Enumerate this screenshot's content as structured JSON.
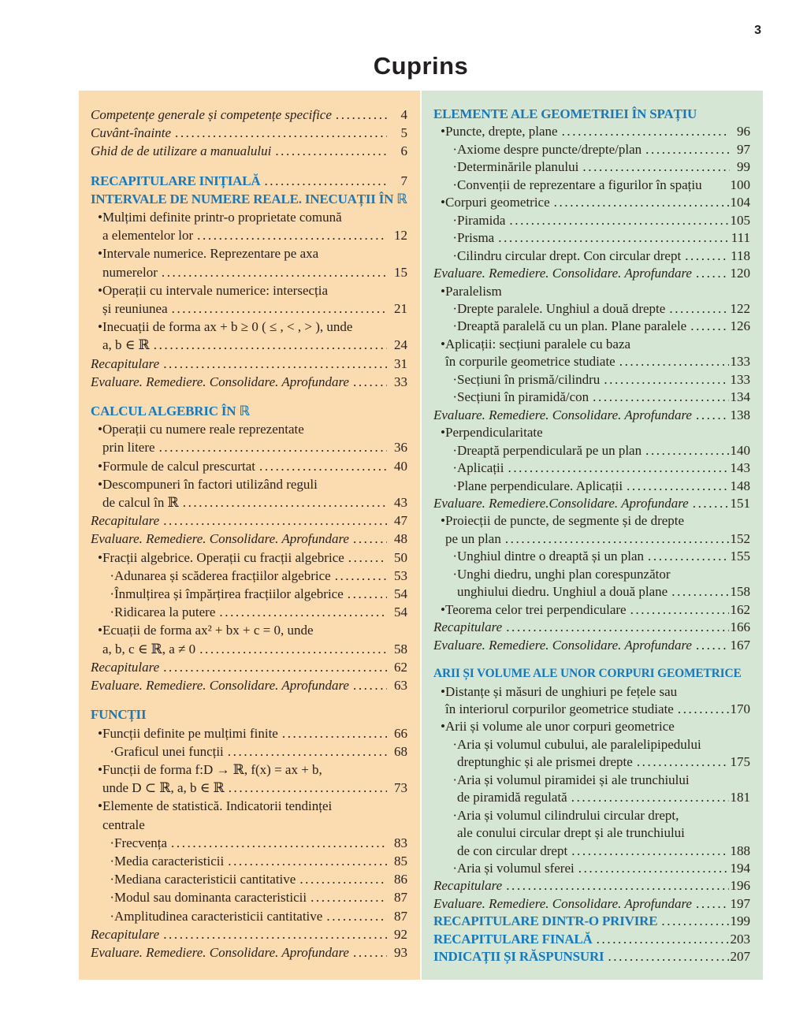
{
  "page_number": "3",
  "title": "Cuprins",
  "colors": {
    "left_column_bg": "#fbdbb0",
    "right_column_bg": "#d6e6d4",
    "heading_blue": "#1778ba",
    "body_text": "#29211d"
  },
  "columns": [
    {
      "name": "left",
      "entries": [
        {
          "style": "italic",
          "text": "Competențe generale și competențe specifice",
          "page": "4"
        },
        {
          "style": "italic",
          "text": "Cuvânt-înainte",
          "page": "5"
        },
        {
          "style": "italic",
          "text": "Ghid de de utilizare a manualului",
          "page": "6"
        },
        {
          "gap": true
        },
        {
          "style": "heading",
          "text": "RECAPITULARE INIȚIALĂ",
          "page": "7"
        },
        {
          "style": "heading",
          "text": "INTERVALE DE NUMERE REALE. INECUAȚII ÎN ℝ"
        },
        {
          "marker": "•",
          "text": "Mulțimi definite printr-o proprietate comună"
        },
        {
          "indent": 1,
          "text": "a elementelor lor",
          "page": "12"
        },
        {
          "marker": "•",
          "text": "Intervale numerice. Reprezentare pe axa"
        },
        {
          "indent": 1,
          "text": "numerelor",
          "page": "15"
        },
        {
          "marker": "•",
          "text": "Operații cu intervale numerice: intersecția"
        },
        {
          "indent": 1,
          "text": "și reuniunea",
          "page": "21"
        },
        {
          "marker": "•",
          "text": "Inecuații de forma ax + b ≥ 0 ( ≤ , < , > ), unde"
        },
        {
          "indent": 1,
          "text": "a, b ∈ ℝ",
          "page": "24"
        },
        {
          "style": "italic",
          "text": "Recapitulare",
          "page": "31"
        },
        {
          "style": "italic",
          "text": "Evaluare. Remediere. Consolidare. Aprofundare",
          "page": "33"
        },
        {
          "gap": true
        },
        {
          "style": "heading",
          "text": "CALCUL ALGEBRIC ÎN ℝ"
        },
        {
          "marker": "•",
          "text": "Operații cu numere reale reprezentate"
        },
        {
          "indent": 1,
          "text": "prin litere",
          "page": "36"
        },
        {
          "marker": "•",
          "text": "Formule de calcul prescurtat",
          "page": "40"
        },
        {
          "marker": "•",
          "text": "Descompuneri în factori utilizând reguli"
        },
        {
          "indent": 1,
          "text": "de calcul în ℝ",
          "page": "43"
        },
        {
          "style": "italic",
          "text": "Recapitulare",
          "page": "47"
        },
        {
          "style": "italic",
          "text": "Evaluare. Remediere. Consolidare. Aprofundare",
          "page": "48"
        },
        {
          "marker": "•",
          "text": "Fracții algebrice. Operații cu fracții algebrice",
          "page": "50"
        },
        {
          "indent": 1,
          "marker": "·",
          "text": "Adunarea și scăderea fracțiilor algebrice",
          "page": "53"
        },
        {
          "indent": 1,
          "marker": "·",
          "text": "Înmulțirea și împărțirea fracțiilor algebrice",
          "page": "54"
        },
        {
          "indent": 1,
          "marker": "·",
          "text": "Ridicarea la putere",
          "page": "54"
        },
        {
          "marker": "•",
          "text": "Ecuații de forma ax² + bx + c = 0, unde"
        },
        {
          "indent": 1,
          "text": "a, b, c ∈ ℝ, a ≠ 0",
          "page": "58"
        },
        {
          "style": "italic",
          "text": "Recapitulare",
          "page": "62"
        },
        {
          "style": "italic",
          "text": "Evaluare. Remediere. Consolidare. Aprofundare",
          "page": "63"
        },
        {
          "gap": true
        },
        {
          "style": "heading",
          "text": "FUNCȚII"
        },
        {
          "marker": "•",
          "text": "Funcții definite pe mulțimi finite",
          "page": "66"
        },
        {
          "indent": 1,
          "marker": "·",
          "text": "Graficul unei funcții",
          "page": "68"
        },
        {
          "marker": "•",
          "text": "Funcții de forma f:D → ℝ, f(x) = ax + b,"
        },
        {
          "indent": 1,
          "text": "unde D ⊂ ℝ, a, b ∈ ℝ",
          "page": "73"
        },
        {
          "marker": "•",
          "text": "Elemente de statistică. Indicatorii tendinței"
        },
        {
          "indent": 1,
          "text": "centrale"
        },
        {
          "indent": 1,
          "marker": "·",
          "text": "Frecvența",
          "page": "83"
        },
        {
          "indent": 1,
          "marker": "·",
          "text": "Media caracteristicii",
          "page": "85"
        },
        {
          "indent": 1,
          "marker": "·",
          "text": "Mediana caracteristicii cantitative",
          "page": "86"
        },
        {
          "indent": 1,
          "marker": "·",
          "text": "Modul sau dominanta caracteristicii",
          "page": "87"
        },
        {
          "indent": 1,
          "marker": "·",
          "text": "Amplitudinea caracteristicii cantitative",
          "page": "87"
        },
        {
          "style": "italic",
          "text": "Recapitulare",
          "page": "92"
        },
        {
          "style": "italic",
          "text": "Evaluare. Remediere. Consolidare. Aprofundare",
          "page": "93"
        }
      ]
    },
    {
      "name": "right",
      "entries": [
        {
          "style": "heading",
          "text": "ELEMENTE ALE GEOMETRIEI ÎN SPAȚIU"
        },
        {
          "marker": "•",
          "text": "Puncte, drepte, plane",
          "page": "96"
        },
        {
          "indent": 1,
          "marker": "·",
          "text": "Axiome despre puncte/drepte/plan",
          "page": "97"
        },
        {
          "indent": 1,
          "marker": "·",
          "text": "Determinările planului",
          "page": "99"
        },
        {
          "indent": 1,
          "marker": "·",
          "text": "Convenții de reprezentare a figurilor în spațiu",
          "page": "100",
          "leader": false
        },
        {
          "marker": "•",
          "text": "Corpuri geometrice",
          "page": "104"
        },
        {
          "indent": 1,
          "marker": "·",
          "text": "Piramida",
          "page": "105"
        },
        {
          "indent": 1,
          "marker": "·",
          "text": "Prisma",
          "page": "111"
        },
        {
          "indent": 1,
          "marker": "·",
          "text": "Cilindru circular drept. Con circular drept",
          "page": "118"
        },
        {
          "style": "italic",
          "text": "Evaluare. Remediere. Consolidare. Aprofundare",
          "page": "120"
        },
        {
          "marker": "•",
          "text": "Paralelism"
        },
        {
          "indent": 1,
          "marker": "·",
          "text": "Drepte paralele. Unghiul a două drepte",
          "page": "122"
        },
        {
          "indent": 1,
          "marker": "·",
          "text": "Dreaptă paralelă cu un plan. Plane paralele",
          "page": "126"
        },
        {
          "marker": "•",
          "text": "Aplicații: secțiuni paralele cu baza"
        },
        {
          "indent": 1,
          "text": "în corpurile geometrice studiate",
          "page": "133"
        },
        {
          "indent": 1,
          "marker": "·",
          "text": "Secțiuni în prismă/cilindru",
          "page": "133"
        },
        {
          "indent": 1,
          "marker": "·",
          "text": "Secțiuni în piramidă/con",
          "page": "134"
        },
        {
          "style": "italic",
          "text": "Evaluare. Remediere. Consolidare. Aprofundare",
          "page": "138"
        },
        {
          "marker": "•",
          "text": "Perpendicularitate"
        },
        {
          "indent": 1,
          "marker": "·",
          "text": "Dreaptă perpendiculară pe un plan",
          "page": "140"
        },
        {
          "indent": 1,
          "marker": "·",
          "text": "Aplicații",
          "page": "143"
        },
        {
          "indent": 1,
          "marker": "·",
          "text": "Plane perpendiculare. Aplicații",
          "page": "148"
        },
        {
          "style": "italic",
          "text": "Evaluare. Remediere.Consolidare. Aprofundare",
          "page": "151"
        },
        {
          "marker": "•",
          "text": "Proiecții de puncte, de segmente și de drepte"
        },
        {
          "indent": 1,
          "text": "pe un plan",
          "page": "152"
        },
        {
          "indent": 1,
          "marker": "·",
          "text": "Unghiul dintre o dreaptă și un plan",
          "page": "155"
        },
        {
          "indent": 1,
          "marker": "·",
          "text": "Unghi diedru, unghi plan corespunzător"
        },
        {
          "indent": 2,
          "text": "unghiului diedru. Unghiul a două plane",
          "page": "158"
        },
        {
          "marker": "•",
          "text": "Teorema celor trei perpendiculare",
          "page": "162"
        },
        {
          "style": "italic",
          "text": "Recapitulare",
          "page": "166"
        },
        {
          "style": "italic",
          "text": "Evaluare. Remediere. Consolidare. Aprofundare",
          "page": "167"
        },
        {
          "gap": true
        },
        {
          "style": "heading",
          "text": "ARII ȘI VOLUME ALE UNOR CORPURI GEOMETRICE"
        },
        {
          "marker": "•",
          "text": "Distanțe și măsuri de unghiuri pe fețele sau"
        },
        {
          "indent": 1,
          "text": "în interiorul corpurilor geometrice studiate",
          "page": "170"
        },
        {
          "marker": "•",
          "text": "Arii și volume ale unor corpuri geometrice"
        },
        {
          "indent": 1,
          "marker": "·",
          "text": "Aria și volumul cubului, ale paralelipipedului"
        },
        {
          "indent": 2,
          "text": "dreptunghic și ale prismei drepte",
          "page": "175"
        },
        {
          "indent": 1,
          "marker": "·",
          "text": "Aria și volumul piramidei și ale trunchiului"
        },
        {
          "indent": 2,
          "text": "de piramidă regulată",
          "page": "181"
        },
        {
          "indent": 1,
          "marker": "·",
          "text": "Aria și volumul cilindrului circular drept,"
        },
        {
          "indent": 2,
          "text": "ale conului circular drept și ale trunchiului"
        },
        {
          "indent": 2,
          "text": "de con circular drept",
          "page": "188"
        },
        {
          "indent": 1,
          "marker": "·",
          "text": "Aria și volumul sferei",
          "page": "194"
        },
        {
          "style": "italic",
          "text": "Recapitulare",
          "page": "196"
        },
        {
          "style": "italic",
          "text": "Evaluare. Remediere. Consolidare. Aprofundare",
          "page": "197"
        },
        {
          "style": "heading",
          "text": "RECAPITULARE DINTR-O PRIVIRE",
          "page": "199"
        },
        {
          "style": "heading",
          "text": "RECAPITULARE FINALĂ",
          "page": "203"
        },
        {
          "style": "heading",
          "text": "INDICAȚII ȘI RĂSPUNSURI",
          "page": "207"
        }
      ]
    }
  ]
}
